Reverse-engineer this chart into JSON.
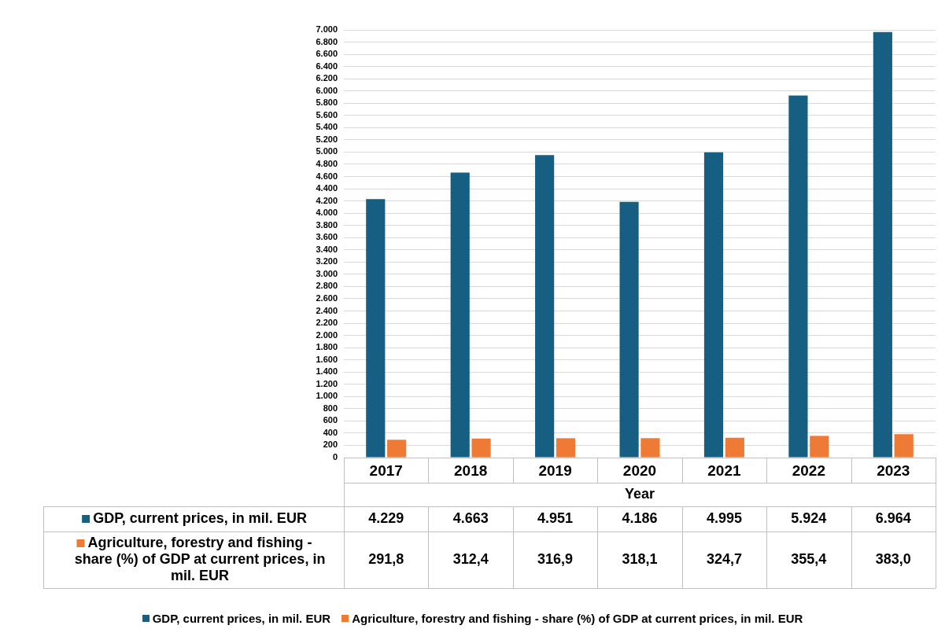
{
  "chart_data": {
    "type": "bar",
    "xlabel": "Year",
    "categories": [
      "2017",
      "2018",
      "2019",
      "2020",
      "2021",
      "2022",
      "2023"
    ],
    "series": [
      {
        "name": "GDP, current prices, in mil. EUR",
        "color": "#175f82",
        "values": [
          4229,
          4663,
          4951,
          4186,
          4995,
          5924,
          6964
        ],
        "value_labels": [
          "4.229",
          "4.663",
          "4.951",
          "4.186",
          "4.995",
          "5.924",
          "6.964"
        ]
      },
      {
        "name": "Agriculture, forestry and fishing - share (%) of GDP at current prices, in mil. EUR",
        "color": "#ee7a35",
        "values": [
          291.8,
          312.4,
          316.9,
          318.1,
          324.7,
          355.4,
          383.0
        ],
        "value_labels": [
          "291,8",
          "312,4",
          "316,9",
          "318,1",
          "324,7",
          "355,4",
          "383,0"
        ]
      }
    ],
    "ylim": [
      0,
      7000
    ],
    "yticks": [
      0,
      200,
      400,
      600,
      800,
      {
        "value": 1000,
        "label": "1.000"
      },
      {
        "value": 1200,
        "label": "1.200"
      },
      {
        "value": 1400,
        "label": "1.400"
      },
      {
        "value": 1600,
        "label": "1.600"
      },
      {
        "value": 1800,
        "label": "1.800"
      },
      {
        "value": 2000,
        "label": "2.000"
      },
      {
        "value": 2200,
        "label": "2.200"
      },
      {
        "value": 2400,
        "label": "2.400"
      },
      {
        "value": 2600,
        "label": "2.600"
      },
      {
        "value": 2800,
        "label": "2.800"
      },
      {
        "value": 3000,
        "label": "3.000"
      },
      {
        "value": 3200,
        "label": "3.200"
      },
      {
        "value": 3400,
        "label": "3.400"
      },
      {
        "value": 3600,
        "label": "3.600"
      },
      {
        "value": 3800,
        "label": "3.800"
      },
      {
        "value": 4000,
        "label": "4.000"
      },
      {
        "value": 4200,
        "label": "4.200"
      },
      {
        "value": 4400,
        "label": "4.400"
      },
      {
        "value": 4600,
        "label": "4.600"
      },
      {
        "value": 4800,
        "label": "4.800"
      },
      {
        "value": 5000,
        "label": "5.000"
      },
      {
        "value": 5200,
        "label": "5.200"
      },
      {
        "value": 5400,
        "label": "5.400"
      },
      {
        "value": 5600,
        "label": "5.600"
      },
      {
        "value": 5800,
        "label": "5.800"
      },
      {
        "value": 6000,
        "label": "6.000"
      },
      {
        "value": 6200,
        "label": "6.200"
      },
      {
        "value": 6400,
        "label": "6.400"
      },
      {
        "value": 6600,
        "label": "6.600"
      },
      {
        "value": 6800,
        "label": "6.800"
      },
      {
        "value": 7000,
        "label": "7.000"
      }
    ],
    "grid": "y",
    "legend": "bottom"
  }
}
